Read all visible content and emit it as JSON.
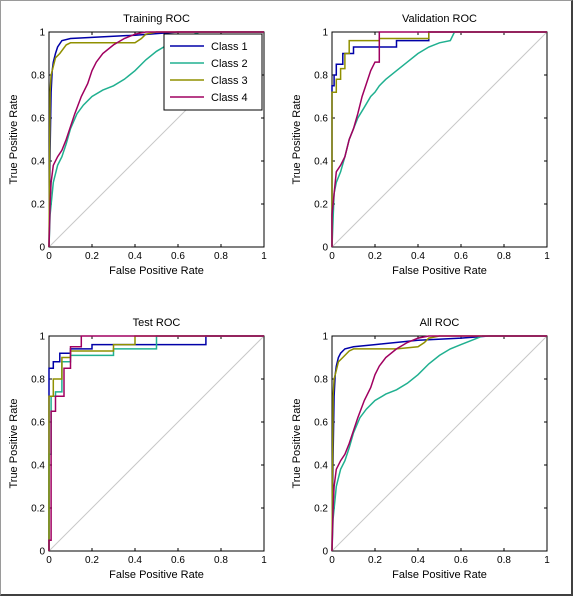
{
  "chart_data": [
    {
      "type": "line",
      "title": "Training ROC",
      "xlabel": "False Positive Rate",
      "ylabel": "True Positive Rate",
      "xlim": [
        0,
        1
      ],
      "ylim": [
        0,
        1
      ],
      "xticks": [
        "0",
        "0.2",
        "0.4",
        "0.6",
        "0.8",
        "1"
      ],
      "yticks": [
        "0",
        "0.2",
        "0.4",
        "0.6",
        "0.8",
        "1"
      ],
      "diagonal": true,
      "legend": "top-right",
      "series": [
        {
          "name": "Class 1",
          "color": "#0000a8",
          "x": [
            0,
            0.005,
            0.01,
            0.015,
            0.02,
            0.03,
            0.04,
            0.06,
            0.1,
            0.2,
            0.4,
            0.6,
            1
          ],
          "y": [
            0,
            0.45,
            0.72,
            0.82,
            0.86,
            0.9,
            0.93,
            0.96,
            0.97,
            0.975,
            0.985,
            1,
            1
          ]
        },
        {
          "name": "Class 2",
          "color": "#20b090",
          "x": [
            0,
            0.005,
            0.02,
            0.04,
            0.06,
            0.08,
            0.1,
            0.13,
            0.16,
            0.2,
            0.25,
            0.3,
            0.35,
            0.4,
            0.45,
            0.5,
            0.55,
            0.6,
            0.65,
            0.7,
            1
          ],
          "y": [
            0,
            0.15,
            0.3,
            0.38,
            0.42,
            0.48,
            0.55,
            0.62,
            0.66,
            0.7,
            0.73,
            0.75,
            0.78,
            0.82,
            0.87,
            0.91,
            0.94,
            0.96,
            0.98,
            1,
            1
          ]
        },
        {
          "name": "Class 3",
          "color": "#909000",
          "x": [
            0,
            0.005,
            0.01,
            0.02,
            0.03,
            0.05,
            0.08,
            0.1,
            0.2,
            0.3,
            0.4,
            0.43,
            0.45,
            0.5,
            0.55,
            1
          ],
          "y": [
            0,
            0.72,
            0.8,
            0.84,
            0.88,
            0.9,
            0.94,
            0.95,
            0.95,
            0.95,
            0.95,
            0.97,
            0.99,
            1,
            1,
            1
          ]
        },
        {
          "name": "Class 4",
          "color": "#a00060",
          "x": [
            0,
            0.005,
            0.01,
            0.02,
            0.04,
            0.06,
            0.08,
            0.1,
            0.12,
            0.15,
            0.18,
            0.2,
            0.22,
            0.25,
            0.3,
            0.35,
            0.4,
            0.45,
            0.5,
            1
          ],
          "y": [
            0,
            0.2,
            0.3,
            0.38,
            0.42,
            0.45,
            0.5,
            0.56,
            0.62,
            0.7,
            0.76,
            0.82,
            0.86,
            0.9,
            0.94,
            0.97,
            0.99,
            1,
            1,
            1
          ]
        }
      ]
    },
    {
      "type": "line",
      "title": "Validation ROC",
      "xlabel": "False Positive Rate",
      "ylabel": "True Positive Rate",
      "xlim": [
        0,
        1
      ],
      "ylim": [
        0,
        1
      ],
      "xticks": [
        "0",
        "0.2",
        "0.4",
        "0.6",
        "0.8",
        "1"
      ],
      "yticks": [
        "0",
        "0.2",
        "0.4",
        "0.6",
        "0.8",
        "1"
      ],
      "diagonal": true,
      "series": [
        {
          "name": "Class 1",
          "color": "#0000a8",
          "x": [
            0,
            0,
            0.01,
            0.01,
            0.02,
            0.02,
            0.05,
            0.05,
            0.1,
            0.1,
            0.3,
            0.3,
            0.45,
            0.45,
            1
          ],
          "y": [
            0,
            0.75,
            0.75,
            0.8,
            0.8,
            0.85,
            0.85,
            0.9,
            0.9,
            0.93,
            0.93,
            0.96,
            0.96,
            1,
            1
          ]
        },
        {
          "name": "Class 2",
          "color": "#20b090",
          "x": [
            0,
            0.01,
            0.02,
            0.04,
            0.06,
            0.08,
            0.1,
            0.12,
            0.15,
            0.18,
            0.2,
            0.22,
            0.25,
            0.3,
            0.35,
            0.4,
            0.45,
            0.5,
            0.55,
            0.57,
            1
          ],
          "y": [
            0,
            0.25,
            0.3,
            0.35,
            0.42,
            0.5,
            0.55,
            0.6,
            0.65,
            0.7,
            0.72,
            0.75,
            0.78,
            0.82,
            0.86,
            0.9,
            0.93,
            0.95,
            0.96,
            1,
            1
          ]
        },
        {
          "name": "Class 3",
          "color": "#909000",
          "x": [
            0,
            0,
            0.02,
            0.02,
            0.04,
            0.04,
            0.06,
            0.06,
            0.08,
            0.08,
            0.22,
            0.22,
            0.45,
            0.45,
            1
          ],
          "y": [
            0,
            0.72,
            0.72,
            0.78,
            0.78,
            0.83,
            0.83,
            0.9,
            0.9,
            0.96,
            0.96,
            0.97,
            0.97,
            1,
            1
          ]
        },
        {
          "name": "Class 4",
          "color": "#a00060",
          "x": [
            0,
            0,
            0.02,
            0.04,
            0.06,
            0.08,
            0.1,
            0.12,
            0.14,
            0.16,
            0.18,
            0.2,
            0.22,
            0.22,
            1
          ],
          "y": [
            0,
            0.15,
            0.35,
            0.38,
            0.42,
            0.5,
            0.55,
            0.62,
            0.7,
            0.76,
            0.82,
            0.86,
            0.86,
            1,
            1
          ]
        }
      ]
    },
    {
      "type": "line",
      "title": "Test ROC",
      "xlabel": "False Positive Rate",
      "ylabel": "True Positive Rate",
      "xlim": [
        0,
        1
      ],
      "ylim": [
        0,
        1
      ],
      "xticks": [
        "0",
        "0.2",
        "0.4",
        "0.6",
        "0.8",
        "1"
      ],
      "yticks": [
        "0",
        "0.2",
        "0.4",
        "0.6",
        "0.8",
        "1"
      ],
      "diagonal": true,
      "series": [
        {
          "name": "Class 1",
          "color": "#0000a8",
          "x": [
            0,
            0,
            0.02,
            0.02,
            0.05,
            0.05,
            0.1,
            0.1,
            0.2,
            0.2,
            0.73,
            0.73,
            1
          ],
          "y": [
            0,
            0.85,
            0.85,
            0.88,
            0.88,
            0.92,
            0.92,
            0.94,
            0.94,
            0.96,
            0.96,
            1,
            1
          ]
        },
        {
          "name": "Class 2",
          "color": "#20b090",
          "x": [
            0,
            0,
            0.01,
            0.01,
            0.03,
            0.03,
            0.06,
            0.06,
            0.1,
            0.1,
            0.3,
            0.3,
            0.5,
            0.5,
            1
          ],
          "y": [
            0,
            0.45,
            0.45,
            0.72,
            0.72,
            0.74,
            0.74,
            0.88,
            0.88,
            0.91,
            0.91,
            0.94,
            0.94,
            1,
            1
          ]
        },
        {
          "name": "Class 3",
          "color": "#909000",
          "x": [
            0,
            0,
            0.02,
            0.02,
            0.06,
            0.06,
            0.1,
            0.1,
            0.3,
            0.3,
            0.4,
            0.4,
            1
          ],
          "y": [
            0,
            0.72,
            0.72,
            0.8,
            0.8,
            0.9,
            0.9,
            0.93,
            0.93,
            0.96,
            0.96,
            1,
            1
          ]
        },
        {
          "name": "Class 4",
          "color": "#a00060",
          "x": [
            0,
            0,
            0.01,
            0.01,
            0.03,
            0.03,
            0.07,
            0.07,
            0.1,
            0.1,
            0.15,
            0.15,
            1
          ],
          "y": [
            0,
            0.05,
            0.05,
            0.65,
            0.65,
            0.72,
            0.72,
            0.85,
            0.85,
            0.95,
            0.95,
            1,
            1
          ]
        }
      ]
    },
    {
      "type": "line",
      "title": "All ROC",
      "xlabel": "False Positive Rate",
      "ylabel": "True Positive Rate",
      "xlim": [
        0,
        1
      ],
      "ylim": [
        0,
        1
      ],
      "xticks": [
        "0",
        "0.2",
        "0.4",
        "0.6",
        "0.8",
        "1"
      ],
      "yticks": [
        "0",
        "0.2",
        "0.4",
        "0.6",
        "0.8",
        "1"
      ],
      "diagonal": true,
      "series": [
        {
          "name": "Class 1",
          "color": "#0000a8",
          "x": [
            0,
            0.005,
            0.01,
            0.015,
            0.02,
            0.03,
            0.04,
            0.06,
            0.1,
            0.2,
            0.4,
            0.6,
            0.73,
            1
          ],
          "y": [
            0,
            0.45,
            0.72,
            0.82,
            0.86,
            0.9,
            0.92,
            0.94,
            0.95,
            0.96,
            0.98,
            0.99,
            1,
            1
          ]
        },
        {
          "name": "Class 2",
          "color": "#20b090",
          "x": [
            0,
            0.005,
            0.02,
            0.04,
            0.06,
            0.08,
            0.1,
            0.13,
            0.16,
            0.2,
            0.25,
            0.3,
            0.35,
            0.4,
            0.45,
            0.5,
            0.55,
            0.6,
            0.65,
            0.7,
            1
          ],
          "y": [
            0,
            0.15,
            0.3,
            0.38,
            0.42,
            0.48,
            0.55,
            0.62,
            0.66,
            0.7,
            0.73,
            0.75,
            0.78,
            0.82,
            0.87,
            0.91,
            0.94,
            0.96,
            0.98,
            1,
            1
          ]
        },
        {
          "name": "Class 3",
          "color": "#909000",
          "x": [
            0,
            0.005,
            0.01,
            0.02,
            0.03,
            0.05,
            0.08,
            0.1,
            0.2,
            0.3,
            0.4,
            0.43,
            0.45,
            0.5,
            1
          ],
          "y": [
            0,
            0.72,
            0.8,
            0.84,
            0.88,
            0.9,
            0.93,
            0.94,
            0.94,
            0.94,
            0.95,
            0.97,
            0.99,
            1,
            1
          ]
        },
        {
          "name": "Class 4",
          "color": "#a00060",
          "x": [
            0,
            0.005,
            0.01,
            0.02,
            0.04,
            0.06,
            0.08,
            0.1,
            0.12,
            0.15,
            0.18,
            0.2,
            0.22,
            0.25,
            0.3,
            0.35,
            0.4,
            0.45,
            0.5,
            1
          ],
          "y": [
            0,
            0.2,
            0.3,
            0.38,
            0.42,
            0.45,
            0.5,
            0.56,
            0.62,
            0.7,
            0.76,
            0.82,
            0.86,
            0.9,
            0.94,
            0.97,
            0.99,
            1,
            1,
            1
          ]
        }
      ]
    }
  ]
}
